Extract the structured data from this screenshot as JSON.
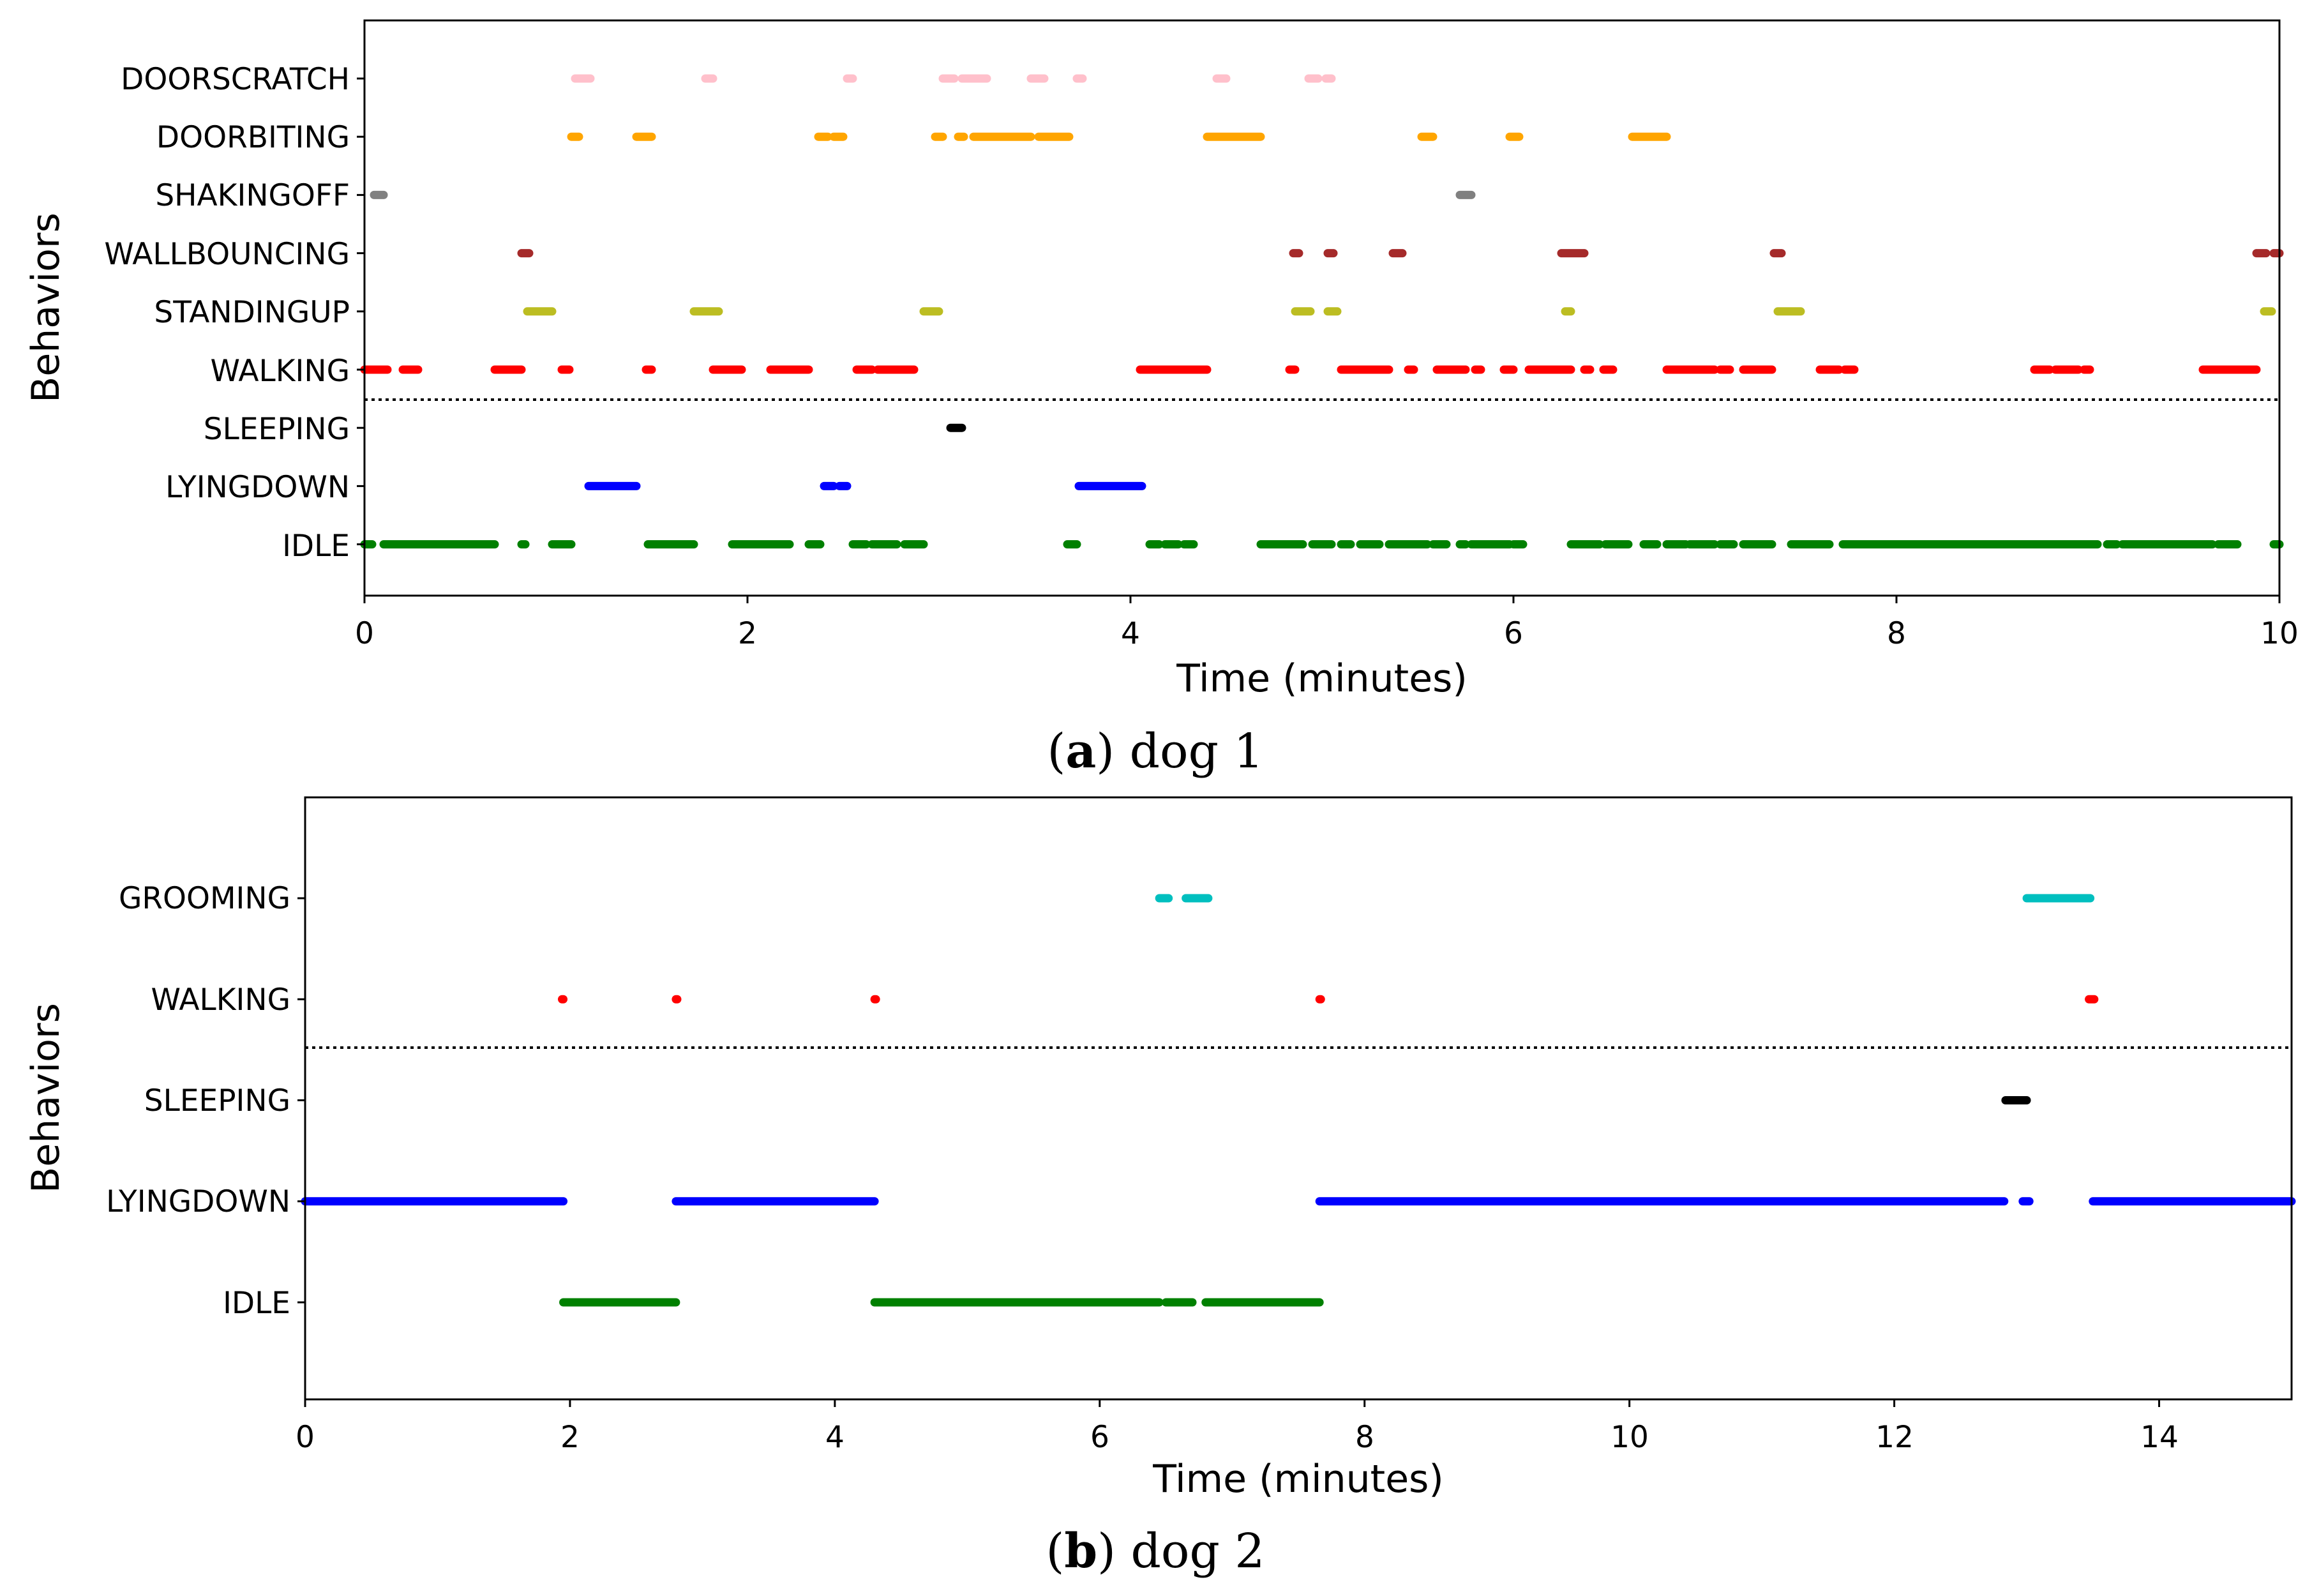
{
  "chart_data": [
    {
      "type": "scatter",
      "subtype": "behavior-timeline",
      "caption_letter": "a",
      "caption_text": " dog 1",
      "xlabel": "Time (minutes)",
      "ylabel": "Behaviors",
      "xlim": [
        0,
        10
      ],
      "xticks": [
        "0",
        "2",
        "4",
        "6",
        "8",
        "10"
      ],
      "xtick_values": [
        0,
        2,
        4,
        6,
        8,
        10
      ],
      "grid": false,
      "separator_between": [
        "WALKING",
        "SLEEPING"
      ],
      "categories": [
        "DOORSCRATCH",
        "DOORBITING",
        "SHAKINGOFF",
        "WALLBOUNCING",
        "STANDINGUP",
        "WALKING",
        "SLEEPING",
        "LYINGDOWN",
        "IDLE"
      ],
      "series": [
        {
          "name": "DOORSCRATCH",
          "color": "#ffc0cb",
          "intervals": [
            [
              1.1,
              1.18
            ],
            [
              1.78,
              1.82
            ],
            [
              2.52,
              2.55
            ],
            [
              3.02,
              3.08
            ],
            [
              3.12,
              3.25
            ],
            [
              3.48,
              3.55
            ],
            [
              3.72,
              3.75
            ],
            [
              4.45,
              4.5
            ],
            [
              4.93,
              4.98
            ],
            [
              5.02,
              5.05
            ]
          ]
        },
        {
          "name": "DOORBITING",
          "color": "#ffa500",
          "intervals": [
            [
              1.08,
              1.12
            ],
            [
              1.42,
              1.5
            ],
            [
              2.37,
              2.42
            ],
            [
              2.45,
              2.5
            ],
            [
              2.98,
              3.02
            ],
            [
              3.1,
              3.13
            ],
            [
              3.18,
              3.48
            ],
            [
              3.52,
              3.68
            ],
            [
              4.4,
              4.68
            ],
            [
              5.52,
              5.58
            ],
            [
              5.98,
              6.03
            ],
            [
              6.62,
              6.8
            ]
          ]
        },
        {
          "name": "SHAKINGOFF",
          "color": "#808080",
          "intervals": [
            [
              0.05,
              0.1
            ],
            [
              5.72,
              5.78
            ]
          ]
        },
        {
          "name": "WALLBOUNCING",
          "color": "#a52a2a",
          "intervals": [
            [
              0.82,
              0.86
            ],
            [
              4.85,
              4.88
            ],
            [
              5.03,
              5.06
            ],
            [
              5.37,
              5.42
            ],
            [
              6.25,
              6.37
            ],
            [
              7.36,
              7.4
            ],
            [
              9.88,
              9.93
            ],
            [
              9.97,
              10.0
            ]
          ]
        },
        {
          "name": "STANDINGUP",
          "color": "#bcbd22",
          "intervals": [
            [
              0.85,
              0.98
            ],
            [
              1.72,
              1.85
            ],
            [
              2.92,
              3.0
            ],
            [
              4.86,
              4.94
            ],
            [
              5.03,
              5.08
            ],
            [
              6.27,
              6.3
            ],
            [
              7.38,
              7.5
            ],
            [
              9.92,
              9.96
            ]
          ]
        },
        {
          "name": "WALKING",
          "color": "#ff0000",
          "intervals": [
            [
              0.0,
              0.12
            ],
            [
              0.2,
              0.28
            ],
            [
              0.68,
              0.82
            ],
            [
              1.03,
              1.07
            ],
            [
              1.47,
              1.5
            ],
            [
              1.82,
              1.97
            ],
            [
              2.12,
              2.32
            ],
            [
              2.57,
              2.65
            ],
            [
              2.68,
              2.87
            ],
            [
              4.05,
              4.4
            ],
            [
              4.83,
              4.86
            ],
            [
              5.1,
              5.35
            ],
            [
              5.45,
              5.48
            ],
            [
              5.6,
              5.75
            ],
            [
              5.8,
              5.83
            ],
            [
              5.95,
              6.0
            ],
            [
              6.08,
              6.3
            ],
            [
              6.37,
              6.4
            ],
            [
              6.47,
              6.52
            ],
            [
              6.8,
              7.05
            ],
            [
              7.08,
              7.13
            ],
            [
              7.2,
              7.35
            ],
            [
              7.6,
              7.7
            ],
            [
              7.73,
              7.78
            ],
            [
              8.72,
              8.8
            ],
            [
              8.83,
              8.95
            ],
            [
              8.98,
              9.01
            ],
            [
              9.6,
              9.88
            ]
          ]
        },
        {
          "name": "SLEEPING",
          "color": "#000000",
          "intervals": [
            [
              3.06,
              3.12
            ]
          ]
        },
        {
          "name": "LYINGDOWN",
          "color": "#0000ff",
          "intervals": [
            [
              1.17,
              1.42
            ],
            [
              2.4,
              2.45
            ],
            [
              2.48,
              2.52
            ],
            [
              3.73,
              4.06
            ]
          ]
        },
        {
          "name": "IDLE",
          "color": "#008000",
          "intervals": [
            [
              0.0,
              0.04
            ],
            [
              0.1,
              0.68
            ],
            [
              0.82,
              0.84
            ],
            [
              0.98,
              1.08
            ],
            [
              1.48,
              1.72
            ],
            [
              1.92,
              2.22
            ],
            [
              2.32,
              2.38
            ],
            [
              2.55,
              2.62
            ],
            [
              2.65,
              2.78
            ],
            [
              2.82,
              2.92
            ],
            [
              3.67,
              3.72
            ],
            [
              4.1,
              4.15
            ],
            [
              4.18,
              4.25
            ],
            [
              4.28,
              4.33
            ],
            [
              4.68,
              4.9
            ],
            [
              4.95,
              5.05
            ],
            [
              5.1,
              5.15
            ],
            [
              5.2,
              5.3
            ],
            [
              5.35,
              5.55
            ],
            [
              5.58,
              5.65
            ],
            [
              5.72,
              5.75
            ],
            [
              5.78,
              5.98
            ],
            [
              6.0,
              6.05
            ],
            [
              6.3,
              6.45
            ],
            [
              6.48,
              6.6
            ],
            [
              6.68,
              6.75
            ],
            [
              6.8,
              6.9
            ],
            [
              6.92,
              7.05
            ],
            [
              7.08,
              7.15
            ],
            [
              7.2,
              7.35
            ],
            [
              7.45,
              7.65
            ],
            [
              7.72,
              9.05
            ],
            [
              9.1,
              9.15
            ],
            [
              9.18,
              9.65
            ],
            [
              9.68,
              9.78
            ],
            [
              9.97,
              10.0
            ]
          ]
        }
      ]
    },
    {
      "type": "scatter",
      "subtype": "behavior-timeline",
      "caption_letter": "b",
      "caption_text": " dog 2",
      "xlabel": "Time (minutes)",
      "ylabel": "Behaviors",
      "xlim": [
        0,
        15
      ],
      "xticks": [
        "0",
        "2",
        "4",
        "6",
        "8",
        "10",
        "12",
        "14"
      ],
      "xtick_values": [
        0,
        2,
        4,
        6,
        8,
        10,
        12,
        14
      ],
      "grid": false,
      "separator_between": [
        "WALKING",
        "SLEEPING"
      ],
      "categories": [
        "GROOMING",
        "WALKING",
        "SLEEPING",
        "LYINGDOWN",
        "IDLE"
      ],
      "series": [
        {
          "name": "GROOMING",
          "color": "#00bfbf",
          "intervals": [
            [
              6.45,
              6.52
            ],
            [
              6.65,
              6.82
            ],
            [
              13.0,
              13.48
            ]
          ]
        },
        {
          "name": "WALKING",
          "color": "#ff0000",
          "intervals": [
            [
              1.94,
              1.95
            ],
            [
              2.8,
              2.81
            ],
            [
              4.3,
              4.31
            ],
            [
              7.66,
              7.67
            ],
            [
              13.47,
              13.51
            ]
          ]
        },
        {
          "name": "SLEEPING",
          "color": "#000000",
          "intervals": [
            [
              12.84,
              13.0
            ]
          ]
        },
        {
          "name": "LYINGDOWN",
          "color": "#0000ff",
          "intervals": [
            [
              0.0,
              1.95
            ],
            [
              2.8,
              4.3
            ],
            [
              7.66,
              12.83
            ],
            [
              12.97,
              13.02
            ],
            [
              13.5,
              15.0
            ]
          ]
        },
        {
          "name": "IDLE",
          "color": "#008000",
          "intervals": [
            [
              1.95,
              2.8
            ],
            [
              4.3,
              6.45
            ],
            [
              6.5,
              6.7
            ],
            [
              6.8,
              7.66
            ]
          ]
        }
      ]
    }
  ]
}
